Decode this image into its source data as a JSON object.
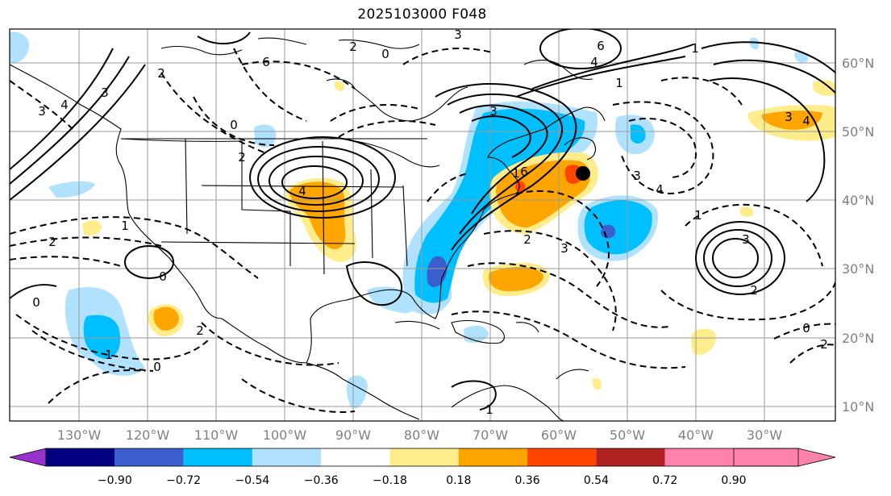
{
  "title": "2025103000 F048",
  "lat_labels": [
    "60°N",
    "50°N",
    "40°N",
    "30°N",
    "20°N",
    "10°N"
  ],
  "lon_labels": [
    "130°W",
    "120°W",
    "110°W",
    "100°W",
    "90°W",
    "80°W",
    "70°W",
    "60°W",
    "50°W",
    "40°W",
    "30°W"
  ],
  "colorbar": {
    "ticks": [
      "−0.90",
      "−0.72",
      "−0.54",
      "−0.36",
      "−0.18",
      "0.18",
      "0.36",
      "0.54",
      "0.72",
      "0.90"
    ],
    "colors": [
      "#9932cc",
      "#000080",
      "#3a5fcd",
      "#00bfff",
      "#b0e2ff",
      "#ffffff",
      "#ffec8b",
      "#ffa500",
      "#ff4500",
      "#b22222",
      "#ff82ab"
    ]
  },
  "contour_labels": [
    "2",
    "0",
    "6",
    "4",
    "6",
    "1",
    "3",
    "4",
    "3",
    "2",
    "4",
    "1",
    "0",
    "2",
    "1",
    "3",
    "6",
    "4",
    "3",
    "0",
    "2",
    "2",
    "0",
    "1",
    "3",
    "2",
    "3",
    "4",
    "3",
    "2",
    "1",
    "0",
    "3",
    "1",
    "1",
    "2",
    "0"
  ]
}
